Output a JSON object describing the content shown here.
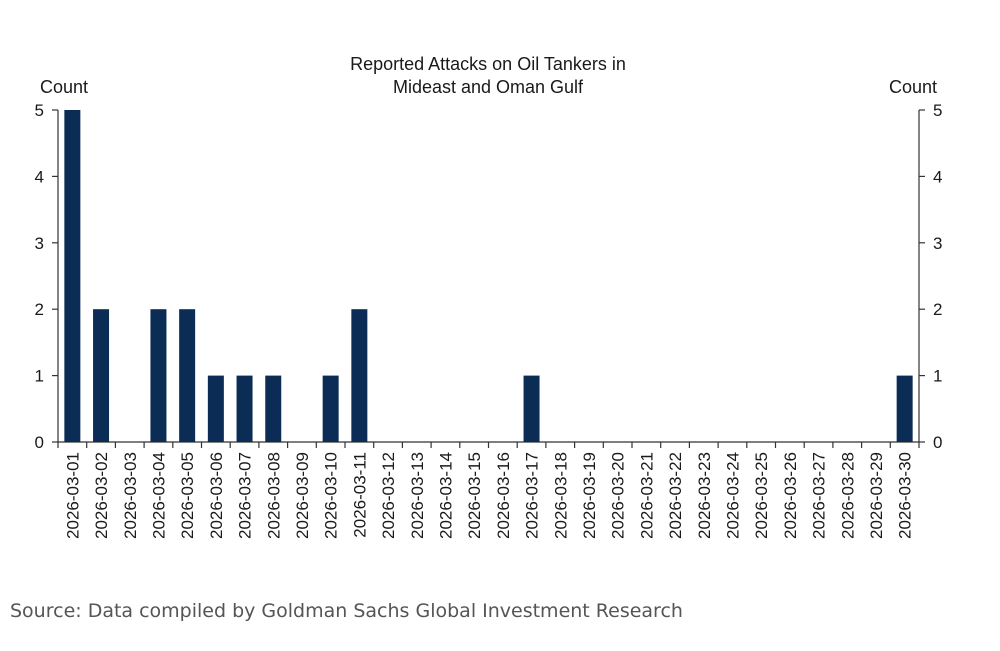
{
  "chart_data": {
    "type": "bar",
    "title": "Reported Attacks on Oil Tankers in\nMideast and Oman Gulf",
    "ylabel_left": "Count",
    "ylabel_right": "Count",
    "ylim": [
      0,
      5
    ],
    "yticks": [
      0,
      1,
      2,
      3,
      4,
      5
    ],
    "grid": false,
    "legend": "none",
    "bar_color": "#0b2d55",
    "categories": [
      "2026-03-01",
      "2026-03-02",
      "2026-03-03",
      "2026-03-04",
      "2026-03-05",
      "2026-03-06",
      "2026-03-07",
      "2026-03-08",
      "2026-03-09",
      "2026-03-10",
      "2026-03-11",
      "2026-03-12",
      "2026-03-13",
      "2026-03-14",
      "2026-03-15",
      "2026-03-16",
      "2026-03-17",
      "2026-03-18",
      "2026-03-19",
      "2026-03-20",
      "2026-03-21",
      "2026-03-22",
      "2026-03-23",
      "2026-03-24",
      "2026-03-25",
      "2026-03-26",
      "2026-03-27",
      "2026-03-28",
      "2026-03-29",
      "2026-03-30"
    ],
    "values": [
      5,
      2,
      0,
      2,
      2,
      1,
      1,
      1,
      0,
      1,
      2,
      0,
      0,
      0,
      0,
      0,
      1,
      0,
      0,
      0,
      0,
      0,
      0,
      0,
      0,
      0,
      0,
      0,
      0,
      1
    ]
  },
  "source_note": "Source: Data compiled by Goldman Sachs Global Investment Research"
}
